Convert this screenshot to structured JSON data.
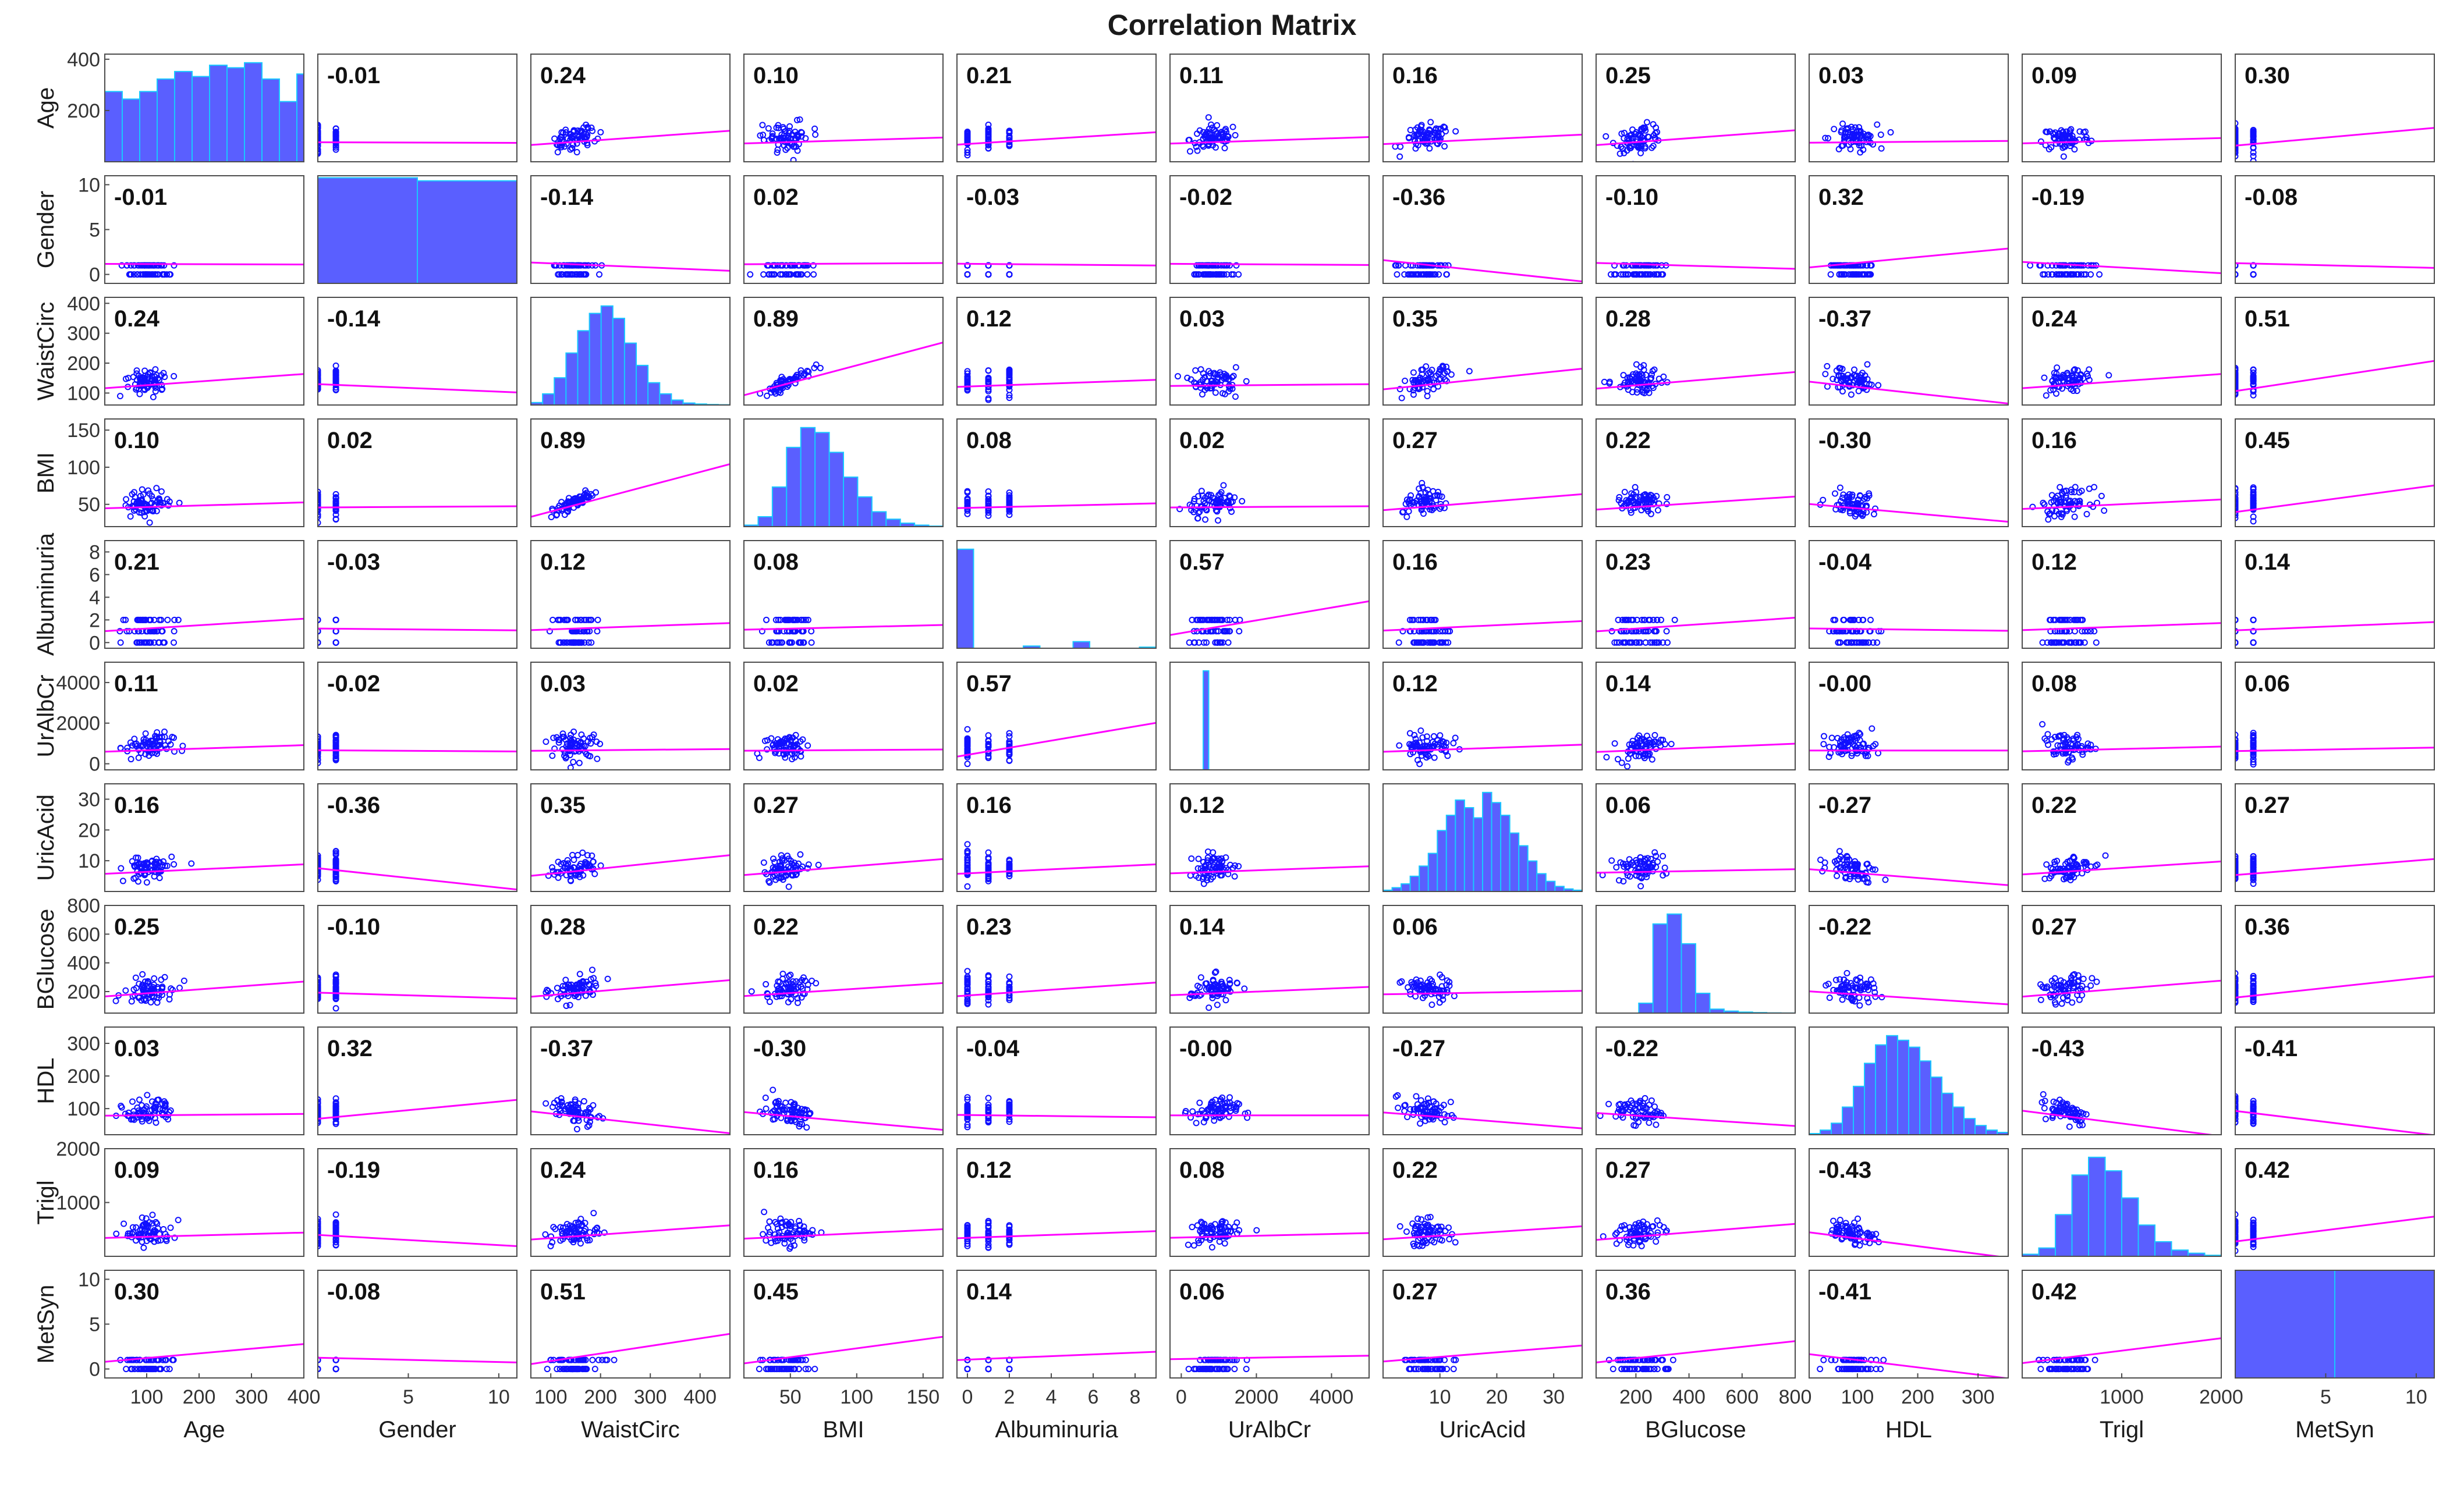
{
  "chart_data": {
    "type": "scatter-matrix",
    "title": "Correlation Matrix",
    "variables": [
      "Age",
      "Gender",
      "WaistCirc",
      "BMI",
      "Albuminuria",
      "UrAlbCr",
      "UricAcid",
      "BGlucose",
      "HDL",
      "Trigl",
      "MetSyn"
    ],
    "x_ticks": [
      [
        "100",
        "200",
        "300",
        "400"
      ],
      [
        "5",
        "10"
      ],
      [
        "100",
        "200",
        "300",
        "400"
      ],
      [
        "50",
        "100",
        "150"
      ],
      [
        "0",
        "2",
        "4",
        "6",
        "8"
      ],
      [
        "0",
        "2000",
        "4000"
      ],
      [
        "10",
        "20",
        "30"
      ],
      [
        "200",
        "400",
        "600",
        "800"
      ],
      [
        "100",
        "200",
        "300"
      ],
      [
        "1000",
        "2000"
      ],
      [
        "5",
        "10"
      ]
    ],
    "x_tick_values": [
      [
        100,
        200,
        300,
        400
      ],
      [
        5,
        10
      ],
      [
        100,
        200,
        300,
        400
      ],
      [
        50,
        100,
        150
      ],
      [
        0,
        2,
        4,
        6,
        8
      ],
      [
        0,
        2000,
        4000
      ],
      [
        10,
        20,
        30
      ],
      [
        200,
        400,
        600,
        800
      ],
      [
        100,
        200,
        300
      ],
      [
        1000,
        2000
      ],
      [
        5,
        10
      ]
    ],
    "x_ranges": [
      [
        20,
        400
      ],
      [
        0,
        11
      ],
      [
        60,
        460
      ],
      [
        15,
        165
      ],
      [
        -0.5,
        9
      ],
      [
        -300,
        5000
      ],
      [
        0,
        35
      ],
      [
        50,
        800
      ],
      [
        20,
        350
      ],
      [
        0,
        2000
      ],
      [
        0,
        11
      ]
    ],
    "y_ticks": [
      [
        "200",
        "400"
      ],
      [
        "0",
        "5",
        "10"
      ],
      [
        "100",
        "200",
        "300",
        "400"
      ],
      [
        "50",
        "100",
        "150"
      ],
      [
        "0",
        "2",
        "4",
        "6",
        "8"
      ],
      [
        "0",
        "2000",
        "4000"
      ],
      [
        "10",
        "20",
        "30"
      ],
      [
        "200",
        "400",
        "600",
        "800"
      ],
      [
        "100",
        "200",
        "300"
      ],
      [
        "1000",
        "2000"
      ],
      [
        "0",
        "5",
        "10"
      ]
    ],
    "y_tick_values": [
      [
        200,
        400
      ],
      [
        0,
        5,
        10
      ],
      [
        100,
        200,
        300,
        400
      ],
      [
        50,
        100,
        150
      ],
      [
        0,
        2,
        4,
        6,
        8
      ],
      [
        0,
        2000,
        4000
      ],
      [
        10,
        20,
        30
      ],
      [
        200,
        400,
        600,
        800
      ],
      [
        100,
        200,
        300
      ],
      [
        1000,
        2000
      ],
      [
        0,
        5,
        10
      ]
    ],
    "y_ranges": [
      [
        0,
        420
      ],
      [
        -1,
        11
      ],
      [
        60,
        420
      ],
      [
        20,
        165
      ],
      [
        -0.5,
        9
      ],
      [
        -300,
        5000
      ],
      [
        0,
        35
      ],
      [
        50,
        800
      ],
      [
        20,
        350
      ],
      [
        0,
        2000
      ],
      [
        -1,
        11
      ]
    ],
    "correlations": [
      [
        "",
        "-0.01",
        "0.24",
        "0.10",
        "0.21",
        "0.11",
        "0.16",
        "0.25",
        "0.03",
        "0.09",
        "0.30"
      ],
      [
        "-0.01",
        "",
        "-0.14",
        "0.02",
        "-0.03",
        "-0.02",
        "-0.36",
        "-0.10",
        "0.32",
        "-0.19",
        "-0.08"
      ],
      [
        "0.24",
        "-0.14",
        "",
        "0.89",
        "0.12",
        "0.03",
        "0.35",
        "0.28",
        "-0.37",
        "0.24",
        "0.51"
      ],
      [
        "0.10",
        "0.02",
        "0.89",
        "",
        "0.08",
        "0.02",
        "0.27",
        "0.22",
        "-0.30",
        "0.16",
        "0.45"
      ],
      [
        "0.21",
        "-0.03",
        "0.12",
        "0.08",
        "",
        "0.57",
        "0.16",
        "0.23",
        "-0.04",
        "0.12",
        "0.14"
      ],
      [
        "0.11",
        "-0.02",
        "0.03",
        "0.02",
        "0.57",
        "",
        "0.12",
        "0.14",
        "-0.00",
        "0.08",
        "0.06"
      ],
      [
        "0.16",
        "-0.36",
        "0.35",
        "0.27",
        "0.16",
        "0.12",
        "",
        "0.06",
        "-0.27",
        "0.22",
        "0.27"
      ],
      [
        "0.25",
        "-0.10",
        "0.28",
        "0.22",
        "0.23",
        "0.14",
        "0.06",
        "",
        "-0.22",
        "0.27",
        "0.36"
      ],
      [
        "0.03",
        "0.32",
        "-0.37",
        "-0.30",
        "-0.04",
        "-0.00",
        "-0.27",
        "-0.22",
        "",
        "-0.43",
        "-0.41"
      ],
      [
        "0.09",
        "-0.19",
        "0.24",
        "0.16",
        "0.12",
        "0.08",
        "0.22",
        "0.27",
        "-0.43",
        "",
        "0.42"
      ],
      [
        "0.30",
        "-0.08",
        "0.51",
        "0.45",
        "0.14",
        "0.06",
        "0.27",
        "0.36",
        "-0.41",
        "0.42",
        ""
      ]
    ],
    "histograms": [
      {
        "edges": [
          20,
          420
        ],
        "counts": [
          280,
          250,
          280,
          330,
          360,
          340,
          385,
          375,
          395,
          330,
          240,
          350
        ]
      },
      {
        "edges": [
          0,
          11
        ],
        "counts": [
          10.4,
          10.1
        ]
      },
      {
        "edges": [
          60,
          460
        ],
        "counts": [
          10,
          45,
          110,
          210,
          300,
          370,
          400,
          350,
          250,
          160,
          90,
          45,
          20,
          8,
          4,
          2,
          1
        ]
      },
      {
        "edges": [
          15,
          165
        ],
        "counts": [
          3,
          20,
          80,
          160,
          200,
          190,
          150,
          100,
          60,
          30,
          15,
          7,
          3,
          1
        ]
      },
      {
        "edges": [
          -0.5,
          9
        ],
        "counts": [
          9,
          0,
          0,
          0,
          0.2,
          0,
          0,
          0.6,
          0,
          0,
          0,
          0.1
        ]
      },
      {
        "edges": [
          -300,
          5000
        ],
        "counts": [
          0,
          0,
          0,
          0,
          0,
          0,
          10,
          0,
          0,
          0,
          0,
          0,
          0,
          0,
          0,
          0,
          0,
          0,
          0,
          0,
          0,
          0,
          0,
          0,
          0,
          0,
          0,
          0,
          0,
          0,
          0,
          0,
          0,
          0,
          0,
          0
        ]
      },
      {
        "edges": [
          0,
          35
        ],
        "counts": [
          1,
          3,
          6,
          12,
          20,
          30,
          48,
          60,
          72,
          66,
          58,
          78,
          70,
          60,
          46,
          36,
          24,
          14,
          8,
          4,
          2,
          1
        ]
      },
      {
        "edges": [
          50,
          800
        ],
        "counts": [
          0,
          0,
          0,
          1,
          9,
          10,
          7,
          2,
          0.4,
          0.2,
          0.1,
          0.05,
          0.02,
          0.01
        ]
      },
      {
        "edges": [
          20,
          350
        ],
        "counts": [
          1,
          4,
          10,
          24,
          42,
          62,
          78,
          86,
          82,
          76,
          64,
          50,
          36,
          24,
          14,
          8,
          4,
          2
        ]
      },
      {
        "edges": [
          0,
          2000
        ],
        "counts": [
          2,
          8,
          40,
          78,
          95,
          82,
          56,
          30,
          14,
          6,
          3,
          1
        ]
      },
      {
        "edges": [
          0,
          11
        ],
        "counts": [
          5,
          5
        ]
      }
    ]
  }
}
